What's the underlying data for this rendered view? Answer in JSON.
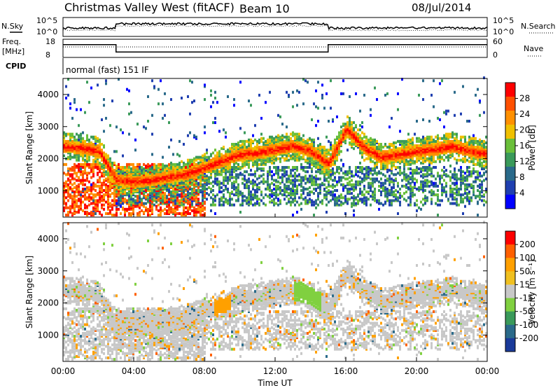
{
  "header": {
    "title": "Christmas Valley West (fitACF)",
    "beam": "Beam 10",
    "date": "08/Jul/2014"
  },
  "noise_panel": {
    "left_label": "N.Sky",
    "left_ticks": [
      "10^5",
      "10^0"
    ],
    "right_ticks": [
      "10^5",
      "10^0"
    ],
    "right_label": "N.Search"
  },
  "freq_panel": {
    "left_label_1": "Freq.",
    "left_label_2": "[MHz]",
    "left_ticks": [
      "18",
      "8"
    ],
    "right_ticks": [
      "60",
      "0"
    ],
    "right_label": "Nave"
  },
  "cpid": {
    "label": "CPID",
    "mode": "normal (fast) 151 IF"
  },
  "axes": {
    "y_label": "Slant Range [km]",
    "y_ticks": [
      "4000",
      "3000",
      "2000",
      "1000"
    ],
    "x_label": "Time UT",
    "x_ticks": [
      "00:00",
      "04:00",
      "08:00",
      "12:00",
      "16:00",
      "20:00",
      "00:00"
    ]
  },
  "power_colorbar": {
    "label": "Power [dB]",
    "ticks": [
      "28",
      "24",
      "20",
      "16",
      "12",
      "8",
      "4"
    ],
    "colors": [
      "#0000ff",
      "#1f3fb0",
      "#2a6a8a",
      "#3a9a5a",
      "#6abf3a",
      "#f0c000",
      "#ff9000",
      "#ff5000",
      "#ff0000"
    ]
  },
  "velocity_colorbar": {
    "label": "Velocity [m s⁻¹]",
    "ticks": [
      "200",
      "100",
      "50",
      "15",
      "-15",
      "-50",
      "-100",
      "-200"
    ],
    "colors": [
      "#ff0000",
      "#ff6000",
      "#ffa000",
      "#f0c020",
      "#c8c8c8",
      "#80d040",
      "#3a9a5a",
      "#2a6a8a",
      "#1a3a9a"
    ]
  },
  "chart_data": [
    {
      "type": "line",
      "name": "frequency",
      "x_hours": [
        0,
        3,
        3,
        15,
        15,
        24
      ],
      "freq_mhz": [
        15,
        15,
        11,
        11,
        15,
        15
      ],
      "ylim": [
        8,
        18
      ]
    },
    {
      "type": "heatmap",
      "name": "power",
      "xlim_hours": [
        0,
        24
      ],
      "ylim_km": [
        180,
        4500
      ],
      "band_center_km_by_hour": [
        [
          0,
          2350
        ],
        [
          1,
          2300
        ],
        [
          2,
          2200
        ],
        [
          3,
          1300
        ],
        [
          4,
          1250
        ],
        [
          5,
          1300
        ],
        [
          6,
          1400
        ],
        [
          7,
          1500
        ],
        [
          8,
          1700
        ],
        [
          9,
          1900
        ],
        [
          10,
          2100
        ],
        [
          11,
          2150
        ],
        [
          12,
          2250
        ],
        [
          13,
          2350
        ],
        [
          14,
          2200
        ],
        [
          15,
          1800
        ],
        [
          16,
          2900
        ],
        [
          17,
          2300
        ],
        [
          18,
          2000
        ],
        [
          19,
          2100
        ],
        [
          20,
          2200
        ],
        [
          21,
          2250
        ],
        [
          22,
          2350
        ],
        [
          23,
          2200
        ],
        [
          24,
          2100
        ]
      ],
      "peak_power_db": 28,
      "vlim_db": [
        0,
        30
      ]
    },
    {
      "type": "heatmap",
      "name": "velocity",
      "xlim_hours": [
        0,
        24
      ],
      "ylim_km": [
        180,
        4500
      ],
      "vlim_ms": [
        -200,
        200
      ],
      "dominant_velocity_ms": 0
    }
  ]
}
